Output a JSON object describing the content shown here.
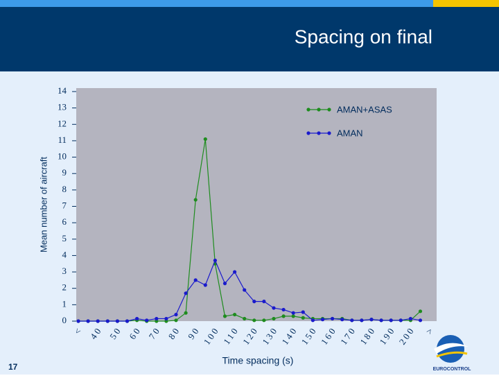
{
  "header": {
    "title": "Spacing on final"
  },
  "slide_number": "17",
  "logo_text": "EUROCONTROL",
  "chart_data": {
    "type": "line",
    "x_label": "Time spacing (s)",
    "y_label": "Mean number of aircraft",
    "categories": [
      "<",
      null,
      "40",
      null,
      "50",
      null,
      "60",
      null,
      "70",
      null,
      "80",
      null,
      "90",
      null,
      "100",
      null,
      "110",
      null,
      "120",
      null,
      "130",
      null,
      "140",
      null,
      "150",
      null,
      "160",
      null,
      "170",
      null,
      "180",
      null,
      "190",
      null,
      "200",
      null,
      ">"
    ],
    "series": [
      {
        "name": "AMAN+ASAS",
        "color": "#1e8c1e",
        "values": [
          0,
          0,
          0,
          0,
          0,
          0,
          0.05,
          0,
          0,
          0,
          0.05,
          0.5,
          7.4,
          11.1,
          3.5,
          0.3,
          0.4,
          0.15,
          0.05,
          0.05,
          0.15,
          0.3,
          0.3,
          0.2,
          0.15,
          0.15,
          0.15,
          0.15,
          0.05,
          0.05,
          0.1,
          0.05,
          0.05,
          0.05,
          0.05,
          0.6,
          null
        ]
      },
      {
        "name": "AMAN",
        "color": "#1a1acc",
        "values": [
          0,
          0,
          0,
          0,
          0,
          0,
          0.15,
          0.05,
          0.15,
          0.15,
          0.4,
          1.7,
          2.5,
          2.2,
          3.7,
          2.3,
          3.0,
          1.9,
          1.2,
          1.2,
          0.8,
          0.7,
          0.5,
          0.55,
          0.05,
          0.1,
          0.15,
          0.1,
          0.05,
          0.05,
          0.1,
          0.05,
          0.05,
          0.05,
          0.15,
          0.05,
          null
        ]
      }
    ],
    "ylim": [
      0,
      14
    ],
    "yticks": [
      0,
      1,
      2,
      3,
      4,
      5,
      6,
      7,
      8,
      9,
      10,
      11,
      12,
      13,
      14
    ],
    "legend": "top-right",
    "plot_background": "#b4b4bf"
  }
}
